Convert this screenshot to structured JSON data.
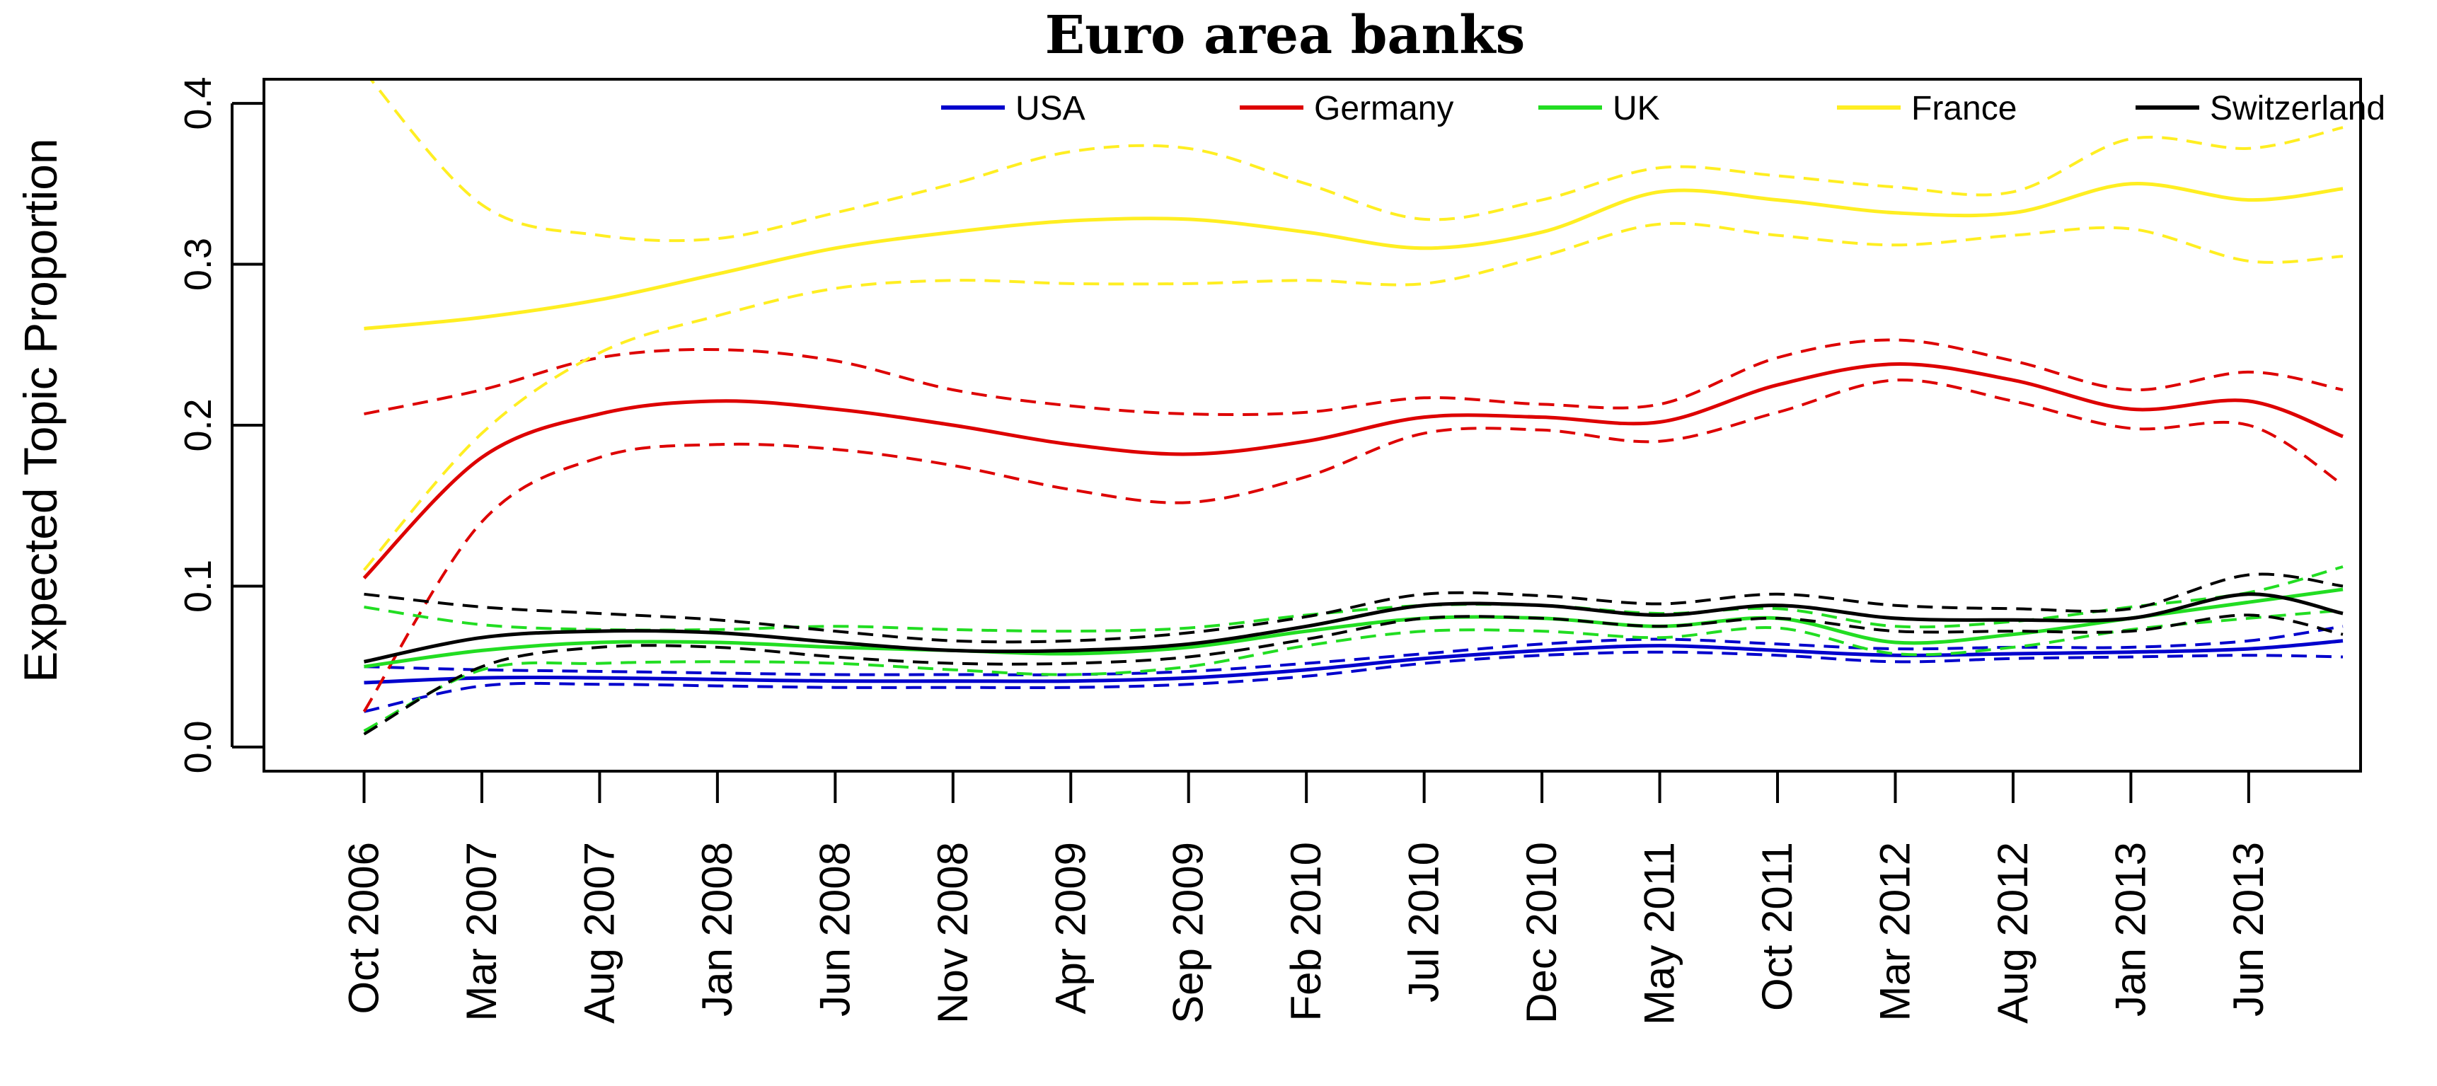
{
  "chart_data": {
    "type": "line",
    "title": "Euro area banks",
    "xlabel": "",
    "ylabel": "Expected Topic Proportion",
    "ylim": [
      -0.015,
      0.415
    ],
    "y_ticks": [
      0.0,
      0.1,
      0.2,
      0.3,
      0.4
    ],
    "y_tick_labels": [
      "0.0",
      "0.1",
      "0.2",
      "0.3",
      "0.4"
    ],
    "x_range": [
      -0.85,
      16.95
    ],
    "x_ticks": [
      "Oct 2006",
      "Mar 2007",
      "Aug 2007",
      "Jan 2008",
      "Jun 2008",
      "Nov 2008",
      "Apr 2009",
      "Sep 2009",
      "Feb 2010",
      "Jul 2010",
      "Dec 2010",
      "May 2011",
      "Oct 2011",
      "Mar 2012",
      "Aug 2012",
      "Jan 2013",
      "Jun 2013"
    ],
    "x_note": "x values are in tick units (0 = Oct 2006, 1 = Mar 2007, ..., 16 = Jun 2013)",
    "grid": false,
    "legend_position": "top",
    "series": [
      {
        "name": "USA",
        "color": "#0000CC",
        "x": [
          0,
          1,
          2,
          3,
          4,
          5,
          6,
          7,
          8,
          9,
          10,
          11,
          12,
          13,
          14,
          15,
          16,
          16.8
        ],
        "mean": [
          0.04,
          0.043,
          0.043,
          0.042,
          0.041,
          0.041,
          0.041,
          0.043,
          0.048,
          0.055,
          0.06,
          0.063,
          0.06,
          0.057,
          0.058,
          0.059,
          0.061,
          0.066
        ],
        "upper": [
          0.05,
          0.048,
          0.047,
          0.046,
          0.045,
          0.045,
          0.045,
          0.047,
          0.052,
          0.058,
          0.064,
          0.067,
          0.064,
          0.061,
          0.062,
          0.062,
          0.066,
          0.075
        ],
        "lower": [
          0.022,
          0.038,
          0.039,
          0.038,
          0.037,
          0.037,
          0.037,
          0.039,
          0.044,
          0.052,
          0.057,
          0.059,
          0.057,
          0.053,
          0.055,
          0.056,
          0.057,
          0.056
        ]
      },
      {
        "name": "Germany",
        "color": "#DD0000",
        "x": [
          0,
          1,
          2,
          3,
          4,
          5,
          6,
          7,
          8,
          9,
          10,
          11,
          12,
          13,
          14,
          15,
          16,
          16.8
        ],
        "mean": [
          0.105,
          0.18,
          0.207,
          0.215,
          0.21,
          0.2,
          0.188,
          0.182,
          0.19,
          0.205,
          0.205,
          0.202,
          0.225,
          0.238,
          0.228,
          0.21,
          0.215,
          0.193
        ],
        "upper": [
          0.207,
          0.222,
          0.242,
          0.247,
          0.24,
          0.222,
          0.212,
          0.207,
          0.208,
          0.217,
          0.213,
          0.213,
          0.242,
          0.253,
          0.24,
          0.222,
          0.233,
          0.222
        ],
        "lower": [
          0.022,
          0.14,
          0.18,
          0.188,
          0.185,
          0.175,
          0.16,
          0.152,
          0.168,
          0.195,
          0.197,
          0.19,
          0.208,
          0.228,
          0.215,
          0.198,
          0.2,
          0.163
        ]
      },
      {
        "name": "UK",
        "color": "#22DD22",
        "x": [
          0,
          1,
          2,
          3,
          4,
          5,
          6,
          7,
          8,
          9,
          10,
          11,
          12,
          13,
          14,
          15,
          16,
          16.8
        ],
        "mean": [
          0.05,
          0.06,
          0.065,
          0.065,
          0.062,
          0.06,
          0.058,
          0.062,
          0.072,
          0.08,
          0.08,
          0.075,
          0.08,
          0.065,
          0.07,
          0.08,
          0.09,
          0.098
        ],
        "upper": [
          0.087,
          0.076,
          0.073,
          0.073,
          0.075,
          0.073,
          0.072,
          0.074,
          0.082,
          0.088,
          0.088,
          0.083,
          0.086,
          0.075,
          0.078,
          0.087,
          0.096,
          0.112
        ],
        "lower": [
          0.01,
          0.048,
          0.052,
          0.053,
          0.052,
          0.048,
          0.045,
          0.05,
          0.063,
          0.072,
          0.072,
          0.068,
          0.074,
          0.058,
          0.062,
          0.073,
          0.08,
          0.085
        ]
      },
      {
        "name": "France",
        "color": "#FFEE22",
        "x": [
          0,
          1,
          2,
          3,
          4,
          5,
          6,
          7,
          8,
          9,
          10,
          11,
          12,
          13,
          14,
          15,
          16,
          16.8
        ],
        "mean": [
          0.26,
          0.267,
          0.278,
          0.294,
          0.31,
          0.32,
          0.327,
          0.328,
          0.32,
          0.31,
          0.32,
          0.345,
          0.34,
          0.332,
          0.332,
          0.35,
          0.34,
          0.347
        ],
        "upper": [
          0.42,
          0.337,
          0.318,
          0.316,
          0.332,
          0.35,
          0.37,
          0.372,
          0.35,
          0.328,
          0.34,
          0.36,
          0.355,
          0.348,
          0.345,
          0.378,
          0.372,
          0.385
        ],
        "lower": [
          0.11,
          0.195,
          0.245,
          0.268,
          0.285,
          0.29,
          0.288,
          0.288,
          0.29,
          0.288,
          0.305,
          0.325,
          0.318,
          0.312,
          0.318,
          0.322,
          0.302,
          0.305
        ]
      },
      {
        "name": "Switzerland",
        "color": "#000000",
        "x": [
          0,
          1,
          2,
          3,
          4,
          5,
          6,
          7,
          8,
          9,
          10,
          11,
          12,
          13,
          14,
          15,
          16,
          16.8
        ],
        "mean": [
          0.053,
          0.068,
          0.072,
          0.071,
          0.065,
          0.06,
          0.06,
          0.064,
          0.075,
          0.088,
          0.088,
          0.082,
          0.088,
          0.08,
          0.079,
          0.08,
          0.095,
          0.083
        ],
        "upper": [
          0.095,
          0.087,
          0.083,
          0.079,
          0.072,
          0.066,
          0.066,
          0.071,
          0.081,
          0.095,
          0.094,
          0.089,
          0.095,
          0.088,
          0.086,
          0.086,
          0.107,
          0.1
        ],
        "lower": [
          0.008,
          0.05,
          0.062,
          0.062,
          0.056,
          0.052,
          0.052,
          0.056,
          0.067,
          0.08,
          0.08,
          0.075,
          0.08,
          0.072,
          0.072,
          0.072,
          0.082,
          0.07
        ]
      }
    ]
  }
}
